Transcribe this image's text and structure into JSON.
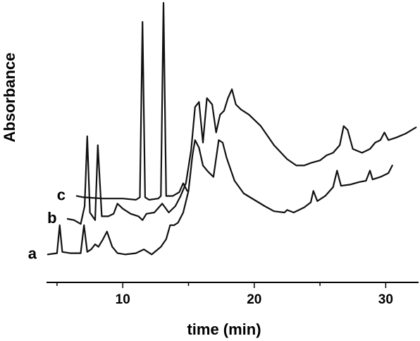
{
  "chart_data": {
    "type": "line",
    "title": "",
    "xlabel": "time (min)",
    "ylabel": "Absorbance",
    "xlim": [
      4.2,
      32.5
    ],
    "x_ticks": [
      10,
      20,
      30
    ],
    "x_minor_ticks": [
      5,
      15,
      25
    ],
    "y_ticks_shown": false,
    "grid": false,
    "series": [
      {
        "name": "a",
        "points": [
          [
            4.3,
            -0.28
          ],
          [
            5.0,
            -0.27
          ],
          [
            5.2,
            -0.05
          ],
          [
            5.4,
            -0.26
          ],
          [
            6.0,
            -0.27
          ],
          [
            6.8,
            -0.27
          ],
          [
            7.05,
            -0.05
          ],
          [
            7.3,
            -0.26
          ],
          [
            7.6,
            -0.24
          ],
          [
            7.9,
            -0.2
          ],
          [
            8.15,
            -0.22
          ],
          [
            8.5,
            -0.16
          ],
          [
            8.8,
            -0.1
          ],
          [
            9.2,
            -0.22
          ],
          [
            9.6,
            -0.27
          ],
          [
            10.2,
            -0.28
          ],
          [
            11.0,
            -0.27
          ],
          [
            11.6,
            -0.24
          ],
          [
            12.2,
            -0.28
          ],
          [
            12.9,
            -0.22
          ],
          [
            13.3,
            -0.16
          ],
          [
            13.6,
            -0.05
          ],
          [
            13.9,
            -0.05
          ],
          [
            14.2,
            -0.03
          ],
          [
            14.6,
            0.05
          ],
          [
            15.0,
            0.22
          ],
          [
            15.3,
            0.5
          ],
          [
            15.5,
            0.62
          ],
          [
            15.8,
            0.56
          ],
          [
            16.1,
            0.42
          ],
          [
            16.5,
            0.37
          ],
          [
            16.9,
            0.33
          ],
          [
            17.3,
            0.62
          ],
          [
            17.6,
            0.6
          ],
          [
            17.9,
            0.48
          ],
          [
            18.5,
            0.3
          ],
          [
            19.2,
            0.2
          ],
          [
            20.0,
            0.15
          ],
          [
            20.8,
            0.1
          ],
          [
            21.5,
            0.06
          ],
          [
            22.3,
            0.05
          ],
          [
            22.5,
            0.07
          ],
          [
            23.0,
            0.05
          ],
          [
            23.8,
            0.09
          ],
          [
            24.3,
            0.13
          ],
          [
            24.5,
            0.22
          ],
          [
            24.8,
            0.14
          ],
          [
            25.4,
            0.18
          ],
          [
            26.0,
            0.25
          ],
          [
            26.3,
            0.38
          ],
          [
            26.6,
            0.26
          ],
          [
            27.3,
            0.27
          ],
          [
            28.0,
            0.29
          ],
          [
            28.5,
            0.3
          ],
          [
            28.8,
            0.38
          ],
          [
            29.0,
            0.31
          ],
          [
            29.6,
            0.33
          ],
          [
            30.2,
            0.36
          ],
          [
            30.5,
            0.42
          ]
        ]
      },
      {
        "name": "b",
        "points": [
          [
            5.8,
            0.0
          ],
          [
            6.3,
            -0.01
          ],
          [
            6.8,
            -0.04
          ],
          [
            7.1,
            0.1
          ],
          [
            7.3,
            0.65
          ],
          [
            7.5,
            0.05
          ],
          [
            7.9,
            -0.01
          ],
          [
            8.1,
            0.58
          ],
          [
            8.4,
            0.02
          ],
          [
            8.9,
            0.02
          ],
          [
            9.3,
            0.04
          ],
          [
            9.6,
            0.12
          ],
          [
            10.0,
            0.08
          ],
          [
            10.6,
            0.04
          ],
          [
            11.2,
            0.02
          ],
          [
            11.5,
            -0.01
          ],
          [
            11.8,
            0.04
          ],
          [
            12.4,
            0.05
          ],
          [
            13.0,
            0.12
          ],
          [
            13.5,
            0.05
          ],
          [
            14.0,
            0.1
          ],
          [
            14.4,
            0.18
          ],
          [
            14.8,
            0.28
          ],
          [
            15.2,
            0.54
          ],
          [
            15.5,
            0.88
          ],
          [
            15.8,
            0.92
          ],
          [
            16.1,
            0.6
          ],
          [
            16.4,
            0.95
          ],
          [
            16.8,
            0.9
          ],
          [
            17.1,
            0.68
          ],
          [
            17.4,
            0.82
          ],
          [
            17.7,
            0.85
          ],
          [
            18.0,
            0.95
          ],
          [
            18.3,
            1.02
          ],
          [
            18.6,
            0.9
          ],
          [
            19.0,
            0.86
          ],
          [
            19.6,
            0.82
          ],
          [
            20.5,
            0.73
          ],
          [
            21.5,
            0.58
          ],
          [
            22.5,
            0.47
          ],
          [
            23.2,
            0.42
          ],
          [
            23.8,
            0.42
          ],
          [
            24.3,
            0.44
          ],
          [
            25.0,
            0.46
          ],
          [
            25.5,
            0.5
          ],
          [
            26.0,
            0.52
          ],
          [
            26.5,
            0.58
          ],
          [
            26.8,
            0.73
          ],
          [
            27.1,
            0.7
          ],
          [
            27.5,
            0.55
          ],
          [
            28.2,
            0.52
          ],
          [
            28.8,
            0.55
          ],
          [
            29.2,
            0.6
          ],
          [
            29.6,
            0.62
          ],
          [
            29.9,
            0.68
          ],
          [
            30.2,
            0.62
          ],
          [
            30.8,
            0.64
          ],
          [
            31.5,
            0.67
          ],
          [
            32.3,
            0.72
          ]
        ]
      },
      {
        "name": "c",
        "points": [
          [
            6.5,
            0.18
          ],
          [
            7.0,
            0.17
          ],
          [
            8.5,
            0.16
          ],
          [
            10.0,
            0.16
          ],
          [
            11.0,
            0.15
          ],
          [
            11.3,
            0.17
          ],
          [
            11.5,
            1.55
          ],
          [
            11.7,
            0.17
          ],
          [
            12.0,
            0.15
          ],
          [
            12.7,
            0.16
          ],
          [
            12.9,
            0.18
          ],
          [
            13.1,
            1.7
          ],
          [
            13.3,
            0.18
          ],
          [
            13.8,
            0.18
          ],
          [
            14.3,
            0.21
          ],
          [
            14.6,
            0.28
          ],
          [
            14.9,
            0.22
          ]
        ]
      }
    ]
  }
}
